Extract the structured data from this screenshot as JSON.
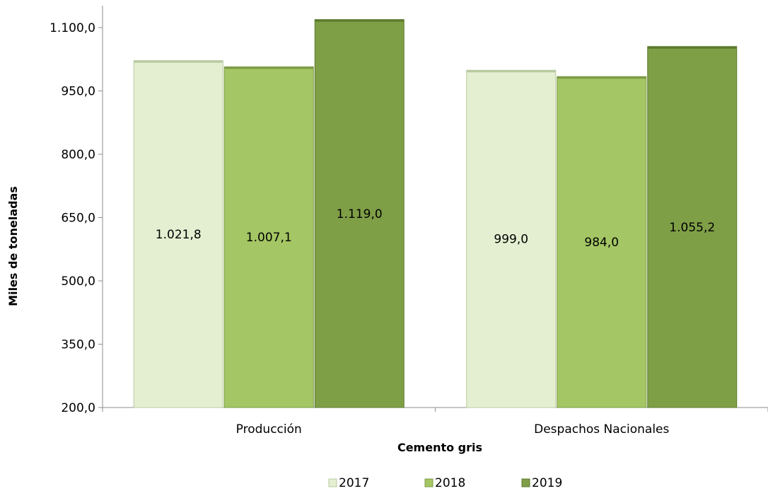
{
  "chart_data": {
    "type": "bar",
    "categories": [
      "Producción",
      "Despachos Nacionales"
    ],
    "series": [
      {
        "name": "2017",
        "values": [
          1021.8,
          999.0
        ],
        "labels": [
          "1.021,8",
          "999,0"
        ],
        "color": "#e4efd2",
        "edge": "#b9c9a0"
      },
      {
        "name": "2018",
        "values": [
          1007.1,
          984.0
        ],
        "labels": [
          "1.007,1",
          "984,0"
        ],
        "color": "#a4c664",
        "edge": "#7d9c45"
      },
      {
        "name": "2019",
        "values": [
          1119.0,
          1055.2
        ],
        "labels": [
          "1.119,0",
          "1.055,2"
        ],
        "color": "#7f9f47",
        "edge": "#5c7a2d"
      }
    ],
    "ylim": [
      200,
      1150
    ],
    "yticks": [
      200,
      350,
      500,
      650,
      800,
      950,
      1100
    ],
    "ytick_labels": [
      "200,0",
      "350,0",
      "500,0",
      "650,0",
      "800,0",
      "950,0",
      "1.100,0"
    ],
    "ylabel": "Miles de toneladas",
    "xlabel": "Cemento gris",
    "grid": false,
    "legend_position": "bottom"
  }
}
